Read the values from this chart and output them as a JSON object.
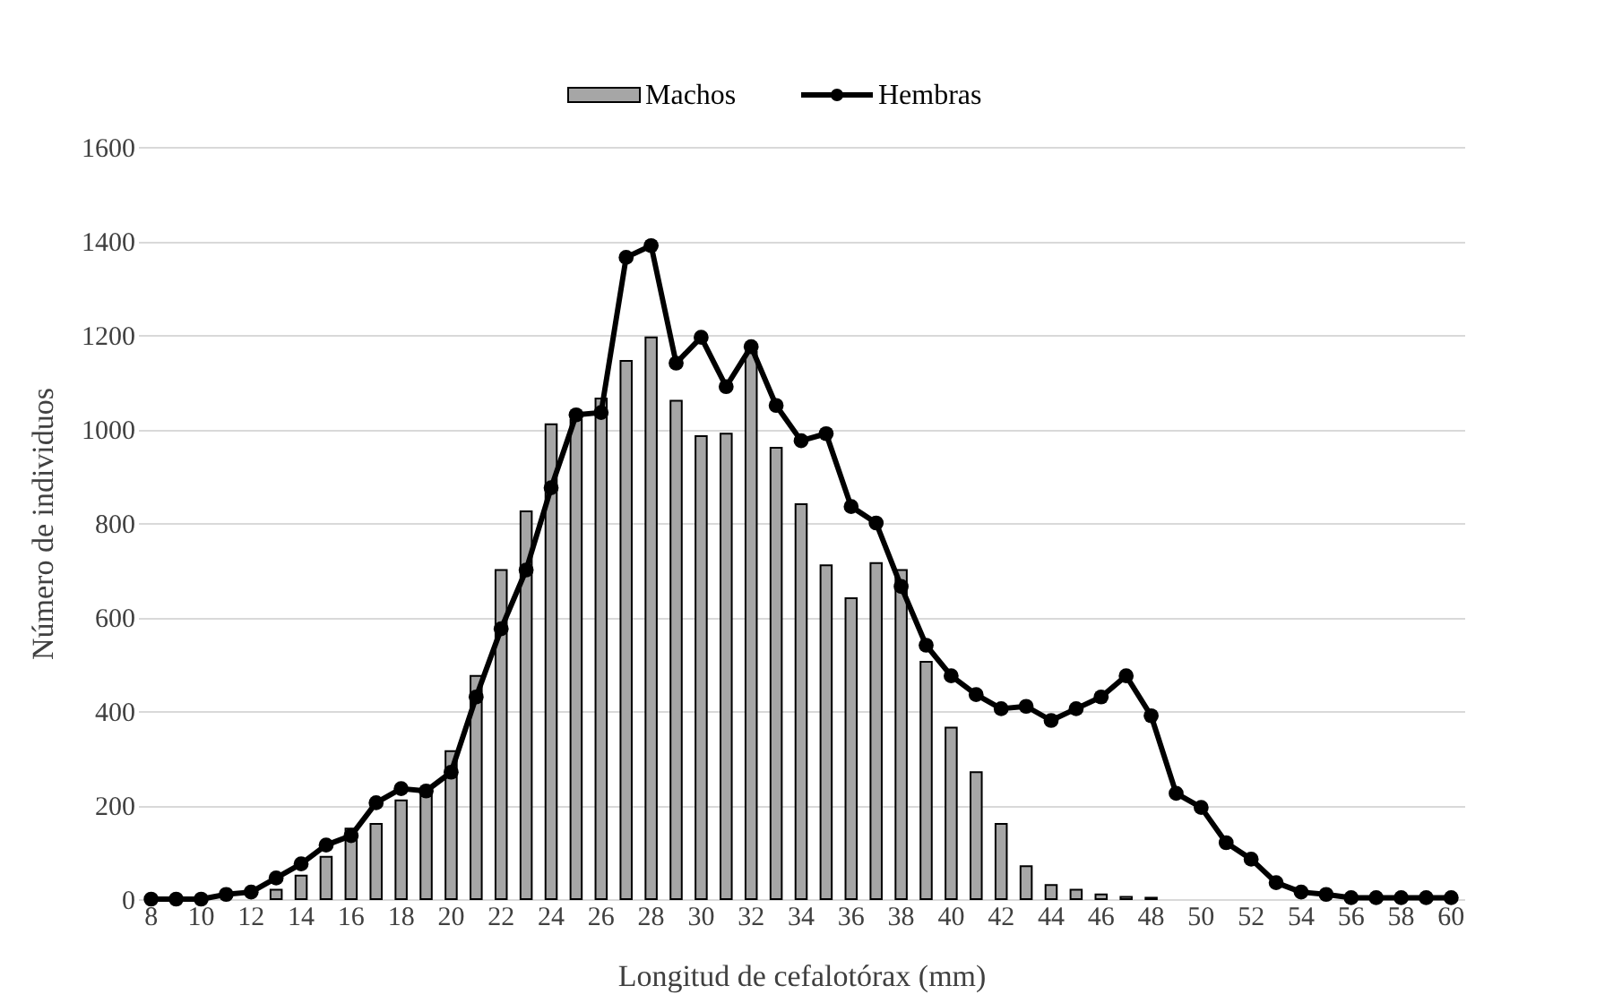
{
  "chart_data": {
    "type": "bar",
    "xlabel": "Longitud de cefalotórax (mm)",
    "ylabel": "Número de individuos",
    "categories": [
      "8",
      null,
      "10",
      null,
      "12",
      null,
      "14",
      null,
      "16",
      null,
      "18",
      null,
      "20",
      null,
      "22",
      null,
      "24",
      null,
      "26",
      null,
      "28",
      null,
      "30",
      null,
      "32",
      null,
      "34",
      null,
      "36",
      null,
      "38",
      null,
      "40",
      null,
      "42",
      null,
      "44",
      null,
      "46",
      null,
      "48",
      null,
      "50",
      null,
      "52",
      null,
      "54",
      null,
      "56",
      null,
      "58",
      null,
      "60"
    ],
    "series": [
      {
        "name": "Machos",
        "color": "#a6a6a6",
        "values": [
          0,
          0,
          0,
          0,
          0,
          20,
          50,
          90,
          150,
          160,
          210,
          230,
          315,
          475,
          700,
          825,
          1010,
          1020,
          1065,
          1145,
          1195,
          1060,
          985,
          990,
          1165,
          960,
          840,
          710,
          640,
          715,
          700,
          505,
          365,
          270,
          160,
          70,
          30,
          20,
          10,
          5,
          3,
          0,
          0,
          0,
          0,
          0,
          0,
          0,
          0,
          0,
          0,
          0,
          0
        ]
      },
      {
        "name": "Hembras",
        "type": "line",
        "color": "#000000",
        "marker": "circle",
        "values": [
          0,
          0,
          0,
          10,
          15,
          45,
          75,
          115,
          135,
          205,
          235,
          230,
          270,
          430,
          575,
          700,
          875,
          1030,
          1035,
          1365,
          1390,
          1140,
          1195,
          1090,
          1175,
          1050,
          975,
          990,
          835,
          800,
          665,
          540,
          475,
          435,
          405,
          410,
          380,
          405,
          430,
          475,
          390,
          225,
          195,
          120,
          85,
          35,
          15,
          10,
          3,
          3,
          3,
          3,
          3
        ]
      }
    ],
    "ylim": [
      0,
      1600
    ],
    "yticks": [
      0,
      200,
      400,
      600,
      800,
      1000,
      1200,
      1400,
      1600
    ],
    "grid": "y",
    "legend": "top"
  }
}
